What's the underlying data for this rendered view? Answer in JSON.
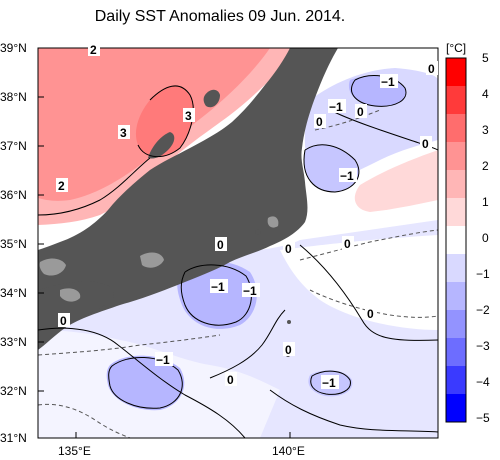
{
  "title": "Daily SST Anomalies 09 Jun. 2014.",
  "map": {
    "y_ticks": [
      "39°N",
      "38°N",
      "37°N",
      "36°N",
      "35°N",
      "34°N",
      "33°N",
      "32°N",
      "31°N"
    ],
    "x_ticks": [
      "135°E",
      "140°E"
    ],
    "contour_labels": [
      {
        "id": "c2-top",
        "text": "2"
      },
      {
        "id": "c2-left",
        "text": "2"
      },
      {
        "id": "c3-a",
        "text": "3"
      },
      {
        "id": "c3-b",
        "text": "3"
      },
      {
        "id": "cm1-ne",
        "text": "−1"
      },
      {
        "id": "cm1-e1",
        "text": "−1"
      },
      {
        "id": "cm1-e2",
        "text": "−1"
      },
      {
        "id": "c0-ne1",
        "text": "0"
      },
      {
        "id": "c0-ne2",
        "text": "0"
      },
      {
        "id": "c0-ne3",
        "text": "0"
      },
      {
        "id": "c0-ne4",
        "text": "0"
      },
      {
        "id": "cm1-izu1",
        "text": "−1"
      },
      {
        "id": "cm1-izu2",
        "text": "−1"
      },
      {
        "id": "c0-a",
        "text": "0"
      },
      {
        "id": "c0-b",
        "text": "0"
      },
      {
        "id": "c0-c",
        "text": "0"
      },
      {
        "id": "c0-d",
        "text": "0"
      },
      {
        "id": "c0-e",
        "text": "0"
      },
      {
        "id": "c0-f",
        "text": "0"
      },
      {
        "id": "cm1-s1",
        "text": "−1"
      },
      {
        "id": "cm1-s2",
        "text": "−1"
      },
      {
        "id": "c0-g",
        "text": "0"
      }
    ]
  },
  "colorbar": {
    "unit": "[°C]",
    "ticks": [
      "5",
      "4",
      "3",
      "2",
      "1",
      "0",
      "−1",
      "−2",
      "−3",
      "−4",
      "−5"
    ],
    "colors": [
      "#ff0000",
      "#ff3a3a",
      "#ff6d6d",
      "#ff9393",
      "#ffb6b6",
      "#ffd9d9",
      "#ffffff",
      "#d9d9ff",
      "#b6b6ff",
      "#9393ff",
      "#6d6dff",
      "#3a3aff",
      "#0000ff"
    ]
  }
}
